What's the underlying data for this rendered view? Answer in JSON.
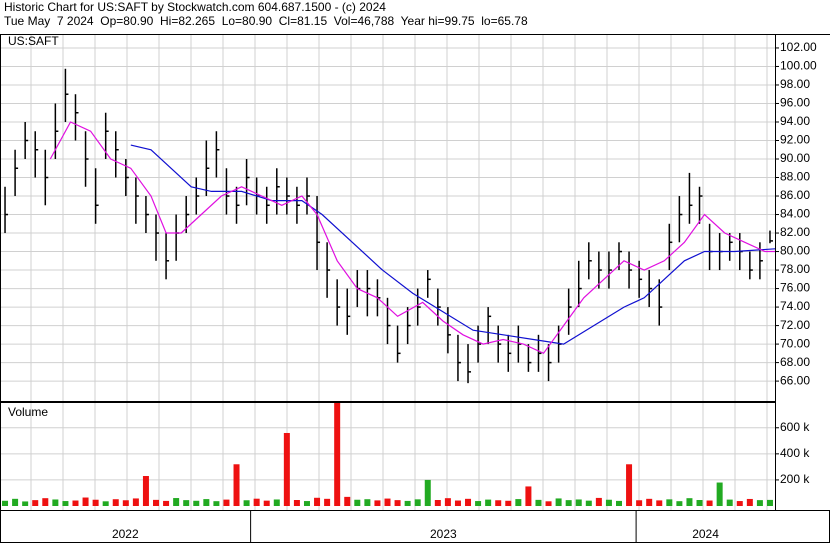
{
  "chart_data": {
    "type": "ohlc",
    "title": "Historic Chart for US:SAFT by Stockwatch.com 604.687.1500 - (c) 2024",
    "subtitle": "Tue May  7 2024  Op=80.90  Hi=82.265  Lo=80.90  Cl=81.15  Vol=46,788  Year hi=99.75  lo=65.78",
    "symbol_label": "US:SAFT",
    "grid": true,
    "bar_color": "#000000",
    "xlim": [
      0,
      77
    ],
    "xticks": [
      24.9,
      63.2
    ],
    "year_labels": [
      "2022",
      "2023",
      "2024"
    ],
    "ylim": [
      63.85,
      103.4
    ],
    "yticks": [
      {
        "value": 66,
        "label": "66.00"
      },
      {
        "value": 68,
        "label": "68.00"
      },
      {
        "value": 70,
        "label": "70.00"
      },
      {
        "value": 72,
        "label": "72.00"
      },
      {
        "value": 74,
        "label": "74.00"
      },
      {
        "value": 76,
        "label": "76.00"
      },
      {
        "value": 78,
        "label": "78.00"
      },
      {
        "value": 80,
        "label": "80.00"
      },
      {
        "value": 82,
        "label": "82.00"
      },
      {
        "value": 84,
        "label": "84.00"
      },
      {
        "value": 86,
        "label": "86.00"
      },
      {
        "value": 88,
        "label": "88.00"
      },
      {
        "value": 90,
        "label": "90.00"
      },
      {
        "value": 92,
        "label": "92.00"
      },
      {
        "value": 94,
        "label": "94.00"
      },
      {
        "value": 96,
        "label": "96.00"
      },
      {
        "value": 98,
        "label": "98.00"
      },
      {
        "value": 100,
        "label": "100.00"
      },
      {
        "value": 102,
        "label": "102.00"
      }
    ],
    "highs": [
      87,
      91,
      94,
      93,
      91,
      96,
      99.75,
      97,
      93,
      89,
      95,
      93,
      90,
      88,
      86,
      84,
      82,
      84,
      86,
      88,
      92,
      93,
      89,
      87,
      90,
      88,
      87,
      89,
      88,
      87,
      88,
      86,
      81,
      77,
      76,
      78,
      78,
      77,
      75,
      72,
      74,
      76,
      78,
      76,
      74,
      71,
      70,
      72,
      74,
      72,
      71,
      72,
      70,
      71,
      70,
      72,
      76,
      79,
      81,
      80,
      80,
      81,
      80,
      79,
      78,
      77,
      83,
      86,
      88.5,
      87,
      83,
      82,
      82,
      82,
      80,
      81,
      82.265
    ],
    "lows": [
      82,
      86,
      90,
      88,
      85,
      90,
      94,
      92,
      87,
      83,
      90,
      88,
      86,
      83,
      82,
      79,
      77,
      79,
      82,
      84,
      86,
      88,
      84,
      83,
      85,
      84,
      83,
      84,
      84,
      83,
      84,
      78,
      75,
      72,
      71,
      74,
      73,
      73,
      70,
      68,
      70,
      72,
      75,
      72,
      69,
      66,
      65.78,
      68,
      70,
      68,
      67,
      68,
      67,
      67,
      66,
      68,
      71,
      74,
      77,
      76,
      76,
      78,
      76,
      75,
      74,
      72,
      78,
      81,
      83,
      83,
      78,
      78,
      79,
      78,
      77,
      77,
      80.9
    ],
    "closes": [
      84,
      89,
      92,
      91,
      88,
      93,
      97,
      95,
      90,
      85,
      93,
      91,
      88,
      86,
      84,
      82,
      79,
      82,
      84,
      86,
      89,
      91,
      86,
      85,
      88,
      86,
      85,
      87,
      86,
      85,
      86,
      81,
      78,
      74,
      73,
      76,
      76,
      75,
      72,
      69,
      72,
      74,
      77,
      74,
      71,
      68,
      67,
      70,
      73,
      70,
      69,
      70,
      68,
      69,
      68,
      70,
      74,
      76,
      79,
      78,
      78,
      80,
      78,
      77,
      76,
      74,
      81,
      84,
      85,
      86,
      80,
      80,
      81,
      80,
      78,
      79,
      81.15
    ],
    "ma_fast": {
      "color": "#e010e0",
      "x": [
        5,
        7,
        9,
        11,
        13,
        15,
        16.5,
        18,
        20,
        22,
        24,
        26,
        28,
        30,
        31.5,
        33.5,
        35.5,
        37.5,
        39.5,
        42,
        44,
        46,
        48,
        50,
        52,
        54,
        56,
        58,
        60,
        62,
        64,
        66,
        68,
        70,
        72,
        74,
        76,
        77
      ],
      "values": [
        90,
        94,
        93,
        90,
        89,
        86,
        82,
        82,
        84,
        86,
        87,
        86,
        85,
        86,
        84,
        79,
        76,
        75,
        73,
        74.5,
        72.5,
        71,
        70,
        70.5,
        70,
        69,
        72,
        75,
        77,
        79,
        78,
        79,
        81,
        84,
        82,
        81,
        80,
        80
      ]
    },
    "ma_slow": {
      "color": "#1010d0",
      "x": [
        13,
        15,
        17,
        19,
        21,
        24,
        27,
        30,
        32,
        35,
        38,
        41,
        44,
        47,
        50,
        53,
        56,
        59,
        62,
        64,
        66,
        68,
        70,
        73,
        77
      ],
      "values": [
        91.5,
        91,
        89,
        87,
        86.5,
        86.5,
        85.5,
        85.5,
        84,
        81,
        78,
        75.5,
        73.5,
        71.5,
        71,
        70.5,
        70,
        72,
        74,
        75,
        77,
        79,
        80,
        80,
        80.3
      ]
    },
    "volume": {
      "label": "Volume",
      "up_color": "#22aa22",
      "down_color": "#ee1111",
      "ylim": [
        0,
        790000
      ],
      "yticks": [
        {
          "value": 200000,
          "label": "200 k"
        },
        {
          "value": 400000,
          "label": "400 k"
        },
        {
          "value": 600000,
          "label": "600 k"
        }
      ],
      "values": [
        40000,
        55000,
        35000,
        45000,
        60000,
        50000,
        38000,
        42000,
        65000,
        48000,
        36000,
        52000,
        44000,
        58000,
        230000,
        47000,
        39000,
        61000,
        45000,
        40000,
        53000,
        37000,
        49000,
        320000,
        44000,
        56000,
        41000,
        50000,
        560000,
        46000,
        38000,
        63000,
        55000,
        790000,
        70000,
        48000,
        52000,
        43000,
        57000,
        45000,
        39000,
        51000,
        200000,
        46000,
        60000,
        42000,
        55000,
        38000,
        49000,
        44000,
        40000,
        53000,
        150000,
        47000,
        36000,
        58000,
        45000,
        50000,
        41000,
        62000,
        48000,
        39000,
        320000,
        44000,
        55000,
        43000,
        51000,
        37000,
        60000,
        46000,
        42000,
        180000,
        49000,
        38000,
        54000,
        45000,
        46788
      ]
    }
  }
}
